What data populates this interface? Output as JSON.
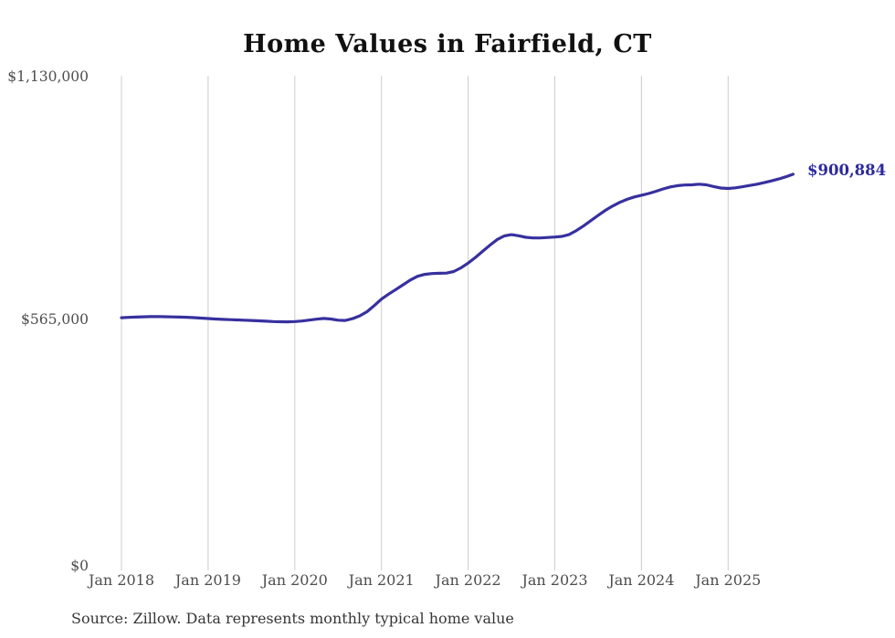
{
  "page": {
    "title": "Home Values in Fairfield, CT",
    "source_note": "Source: Zillow. Data represents monthly typical home value"
  },
  "chart_data": {
    "type": "line",
    "title": "Home Values in Fairfield, CT",
    "xlabel": "",
    "ylabel": "",
    "ylim": [
      0,
      1130000
    ],
    "y_ticks": [
      0,
      565000,
      1130000
    ],
    "y_tick_labels": [
      "$0",
      "$565,000",
      "$1,130,000"
    ],
    "x_tick_labels": [
      "Jan 2018",
      "Jan 2019",
      "Jan 2020",
      "Jan 2021",
      "Jan 2022",
      "Jan 2023",
      "Jan 2024",
      "Jan 2025"
    ],
    "grid": "vertical-gridlines-only",
    "legend_position": "none",
    "end_label": "$900,884",
    "last_value": 900884,
    "line_color": "#37309E",
    "end_label_color": "#2D2A9D",
    "gridline_color": "#CCCCCC",
    "start_month": "2018-01",
    "frequency": "monthly",
    "series": [
      {
        "name": "Typical home value",
        "values": [
          570000,
          570800,
          571500,
          572200,
          572600,
          572700,
          572400,
          572000,
          571500,
          571000,
          570300,
          569300,
          568200,
          567200,
          566300,
          565600,
          565000,
          564400,
          563700,
          562900,
          562000,
          561200,
          560700,
          560600,
          561200,
          562500,
          564500,
          566700,
          568300,
          567000,
          564300,
          563800,
          568000,
          574500,
          584000,
          598000,
          613000,
          624500,
          635000,
          646000,
          657000,
          665500,
          670000,
          672000,
          672500,
          673000,
          676500,
          685000,
          696000,
          709000,
          723000,
          737000,
          750000,
          758500,
          761500,
          759000,
          755500,
          754000,
          754000,
          755000,
          756000,
          757500,
          762000,
          771000,
          782000,
          794000,
          806000,
          817500,
          827500,
          836000,
          843000,
          848500,
          852500,
          856500,
          861500,
          867000,
          871500,
          874500,
          876000,
          876500,
          878000,
          876500,
          872500,
          869000,
          868000,
          869500,
          872000,
          875000,
          878000,
          881500,
          885500,
          890000,
          895000,
          900884
        ]
      }
    ]
  }
}
